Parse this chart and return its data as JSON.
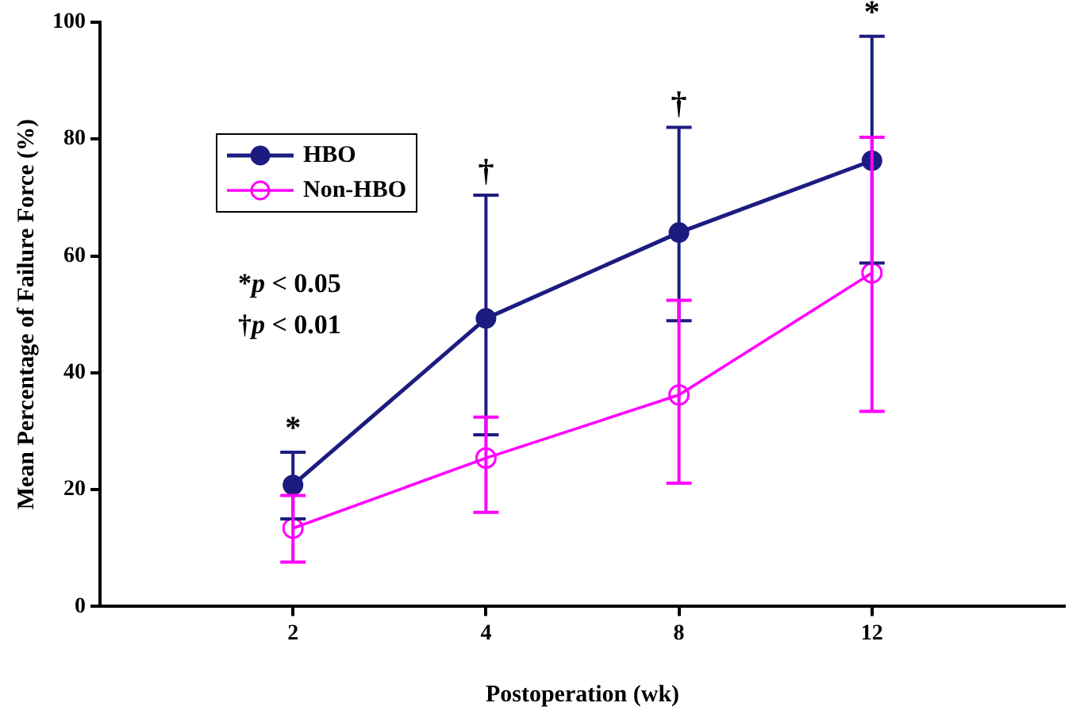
{
  "chart_data": {
    "type": "line",
    "xlabel": "Postoperation (wk)",
    "ylabel": "Mean Percentage of Failure Force (%)",
    "categories": [
      null,
      "2",
      "4",
      "8",
      "12",
      null
    ],
    "series": [
      {
        "name": "HBO",
        "color": "#1c1c80",
        "marker": "circle",
        "values": [
          null,
          20.8,
          49.3,
          64,
          76.3,
          null
        ],
        "errors": [
          null,
          [
            15,
            26.4
          ],
          [
            29.4,
            70.4
          ],
          [
            48.9,
            82
          ],
          [
            58.8,
            97.6
          ],
          null
        ]
      },
      {
        "name": "Non-HBO",
        "color": "#ff00ff",
        "marker": "circle",
        "values": [
          null,
          13.4,
          25.4,
          36.2,
          57.1,
          null
        ],
        "errors": [
          null,
          [
            7.6,
            19
          ],
          [
            16.1,
            32.4
          ],
          [
            21.1,
            52.4
          ],
          [
            33.4,
            80.3
          ],
          null
        ]
      }
    ],
    "ylim": [
      0,
      100
    ],
    "yticks": [
      0,
      20,
      40,
      60,
      80,
      100
    ],
    "grid": false,
    "legend": "top left",
    "annotations": [
      "*",
      "†",
      "†",
      "*",
      "*p < 0.05",
      "†p < 0.01"
    ]
  }
}
